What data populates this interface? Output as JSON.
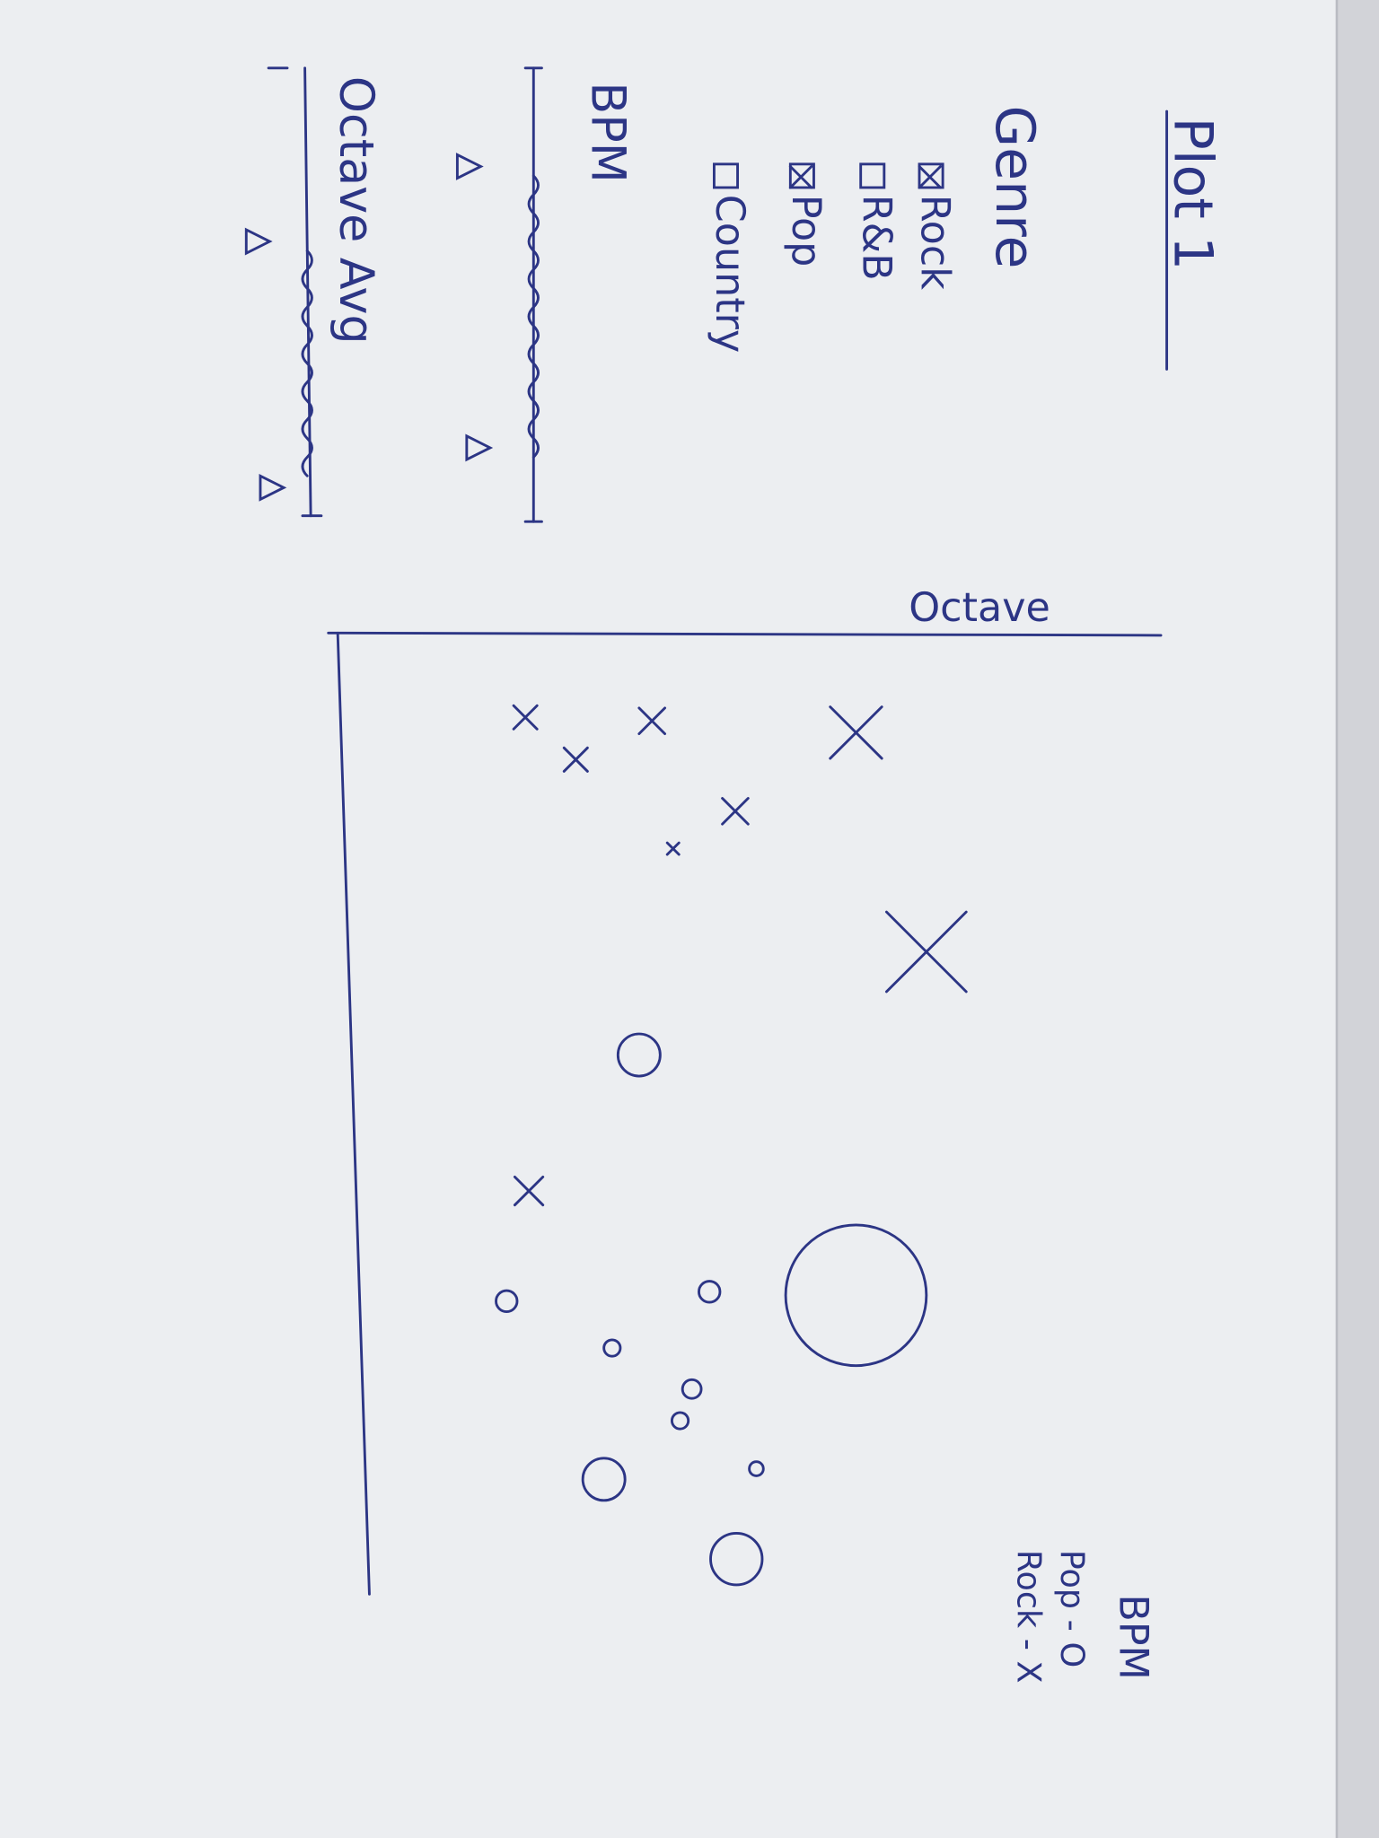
{
  "header": {
    "title": "Plot 1"
  },
  "filters": {
    "label": "Genre",
    "options": [
      {
        "label": "Rock",
        "checked": true
      },
      {
        "label": "R&B",
        "checked": false
      },
      {
        "label": "Pop",
        "checked": true
      },
      {
        "label": "Country",
        "checked": false
      }
    ]
  },
  "sliders": [
    {
      "label": "BPM"
    },
    {
      "label": "Octave Avg"
    }
  ],
  "plot": {
    "x_axis_label": "Octave",
    "y_axis_label": "BPM",
    "legend": [
      {
        "label": "Pop - O"
      },
      {
        "label": "Rock - X"
      }
    ]
  }
}
